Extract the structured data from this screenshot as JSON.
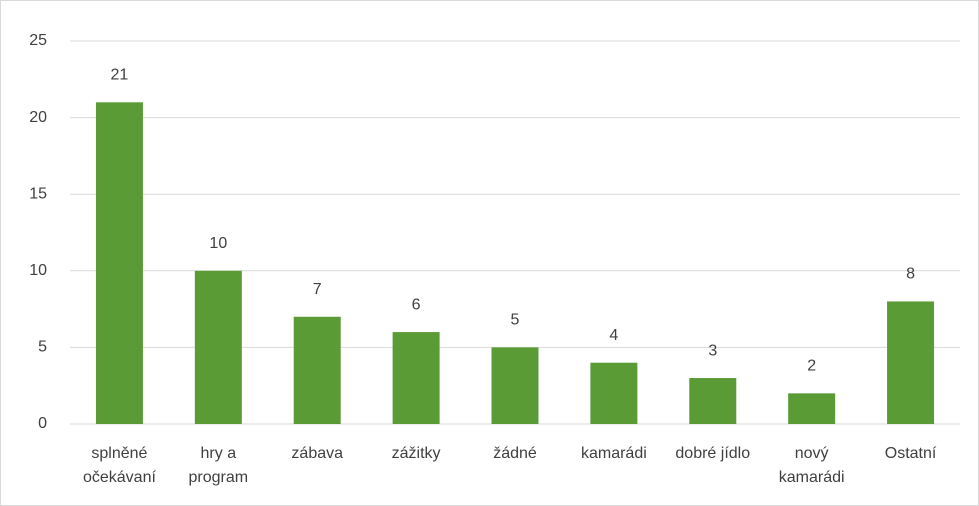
{
  "chart_data": {
    "type": "bar",
    "categories": [
      "splněné očekávaní",
      "hry a program",
      "zábava",
      "zážitky",
      "žádné",
      "kamarádi",
      "dobré jídlo",
      "nový kamarádi",
      "Ostatní"
    ],
    "values": [
      21,
      10,
      7,
      6,
      5,
      4,
      3,
      2,
      8
    ],
    "color": "#5b9b36",
    "ylim": [
      0,
      25
    ],
    "yticks": [
      0,
      5,
      10,
      15,
      20,
      25
    ],
    "grid": true
  }
}
